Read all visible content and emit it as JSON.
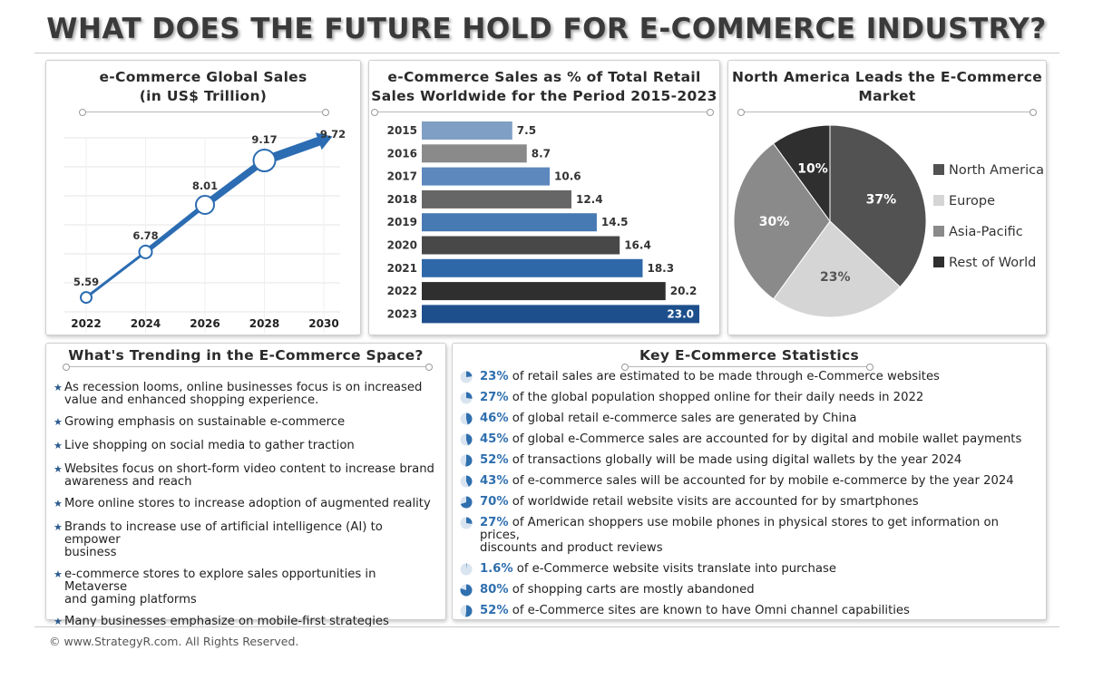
{
  "title": "WHAT DOES THE FUTURE HOLD FOR E-COMMERCE INDUSTRY?",
  "colors": {
    "blue": "#2f6fae",
    "line_blue": "#2b6cb2",
    "dark": "#3d3d3d"
  },
  "chart_data": [
    {
      "type": "line",
      "title_lines": [
        "e-Commerce Global Sales",
        "(in US$ Trillion)"
      ],
      "x": [
        "2022",
        "2024",
        "2026",
        "2028",
        "2030"
      ],
      "values": [
        5.59,
        6.78,
        8.01,
        9.17,
        9.72
      ],
      "grid": true
    },
    {
      "type": "bar",
      "orientation": "horizontal",
      "title_lines": [
        "e-Commerce Sales as % of Total Retail",
        "Sales Worldwide for the Period 2015-2023"
      ],
      "categories": [
        "2015",
        "2016",
        "2017",
        "2018",
        "2019",
        "2020",
        "2021",
        "2022",
        "2023"
      ],
      "values": [
        7.5,
        8.7,
        10.6,
        12.4,
        14.5,
        16.4,
        18.3,
        20.2,
        23.0
      ],
      "labels": [
        "7.5",
        "8.7",
        "10.6",
        "12.4",
        "14.5",
        "16.4",
        "18.3",
        "20.2",
        "23.0"
      ],
      "bar_colors": [
        "#7f9fc4",
        "#8a8a8a",
        "#5c88be",
        "#666666",
        "#4779b3",
        "#484848",
        "#2e68a8",
        "#2f2f2f",
        "#1d4f8c"
      ]
    },
    {
      "type": "pie",
      "title_lines": [
        "North America Leads the E-Commerce",
        "Market"
      ],
      "slices": [
        {
          "name": "North America",
          "value": 37,
          "label": "37%",
          "color": "#525252"
        },
        {
          "name": "Europe",
          "value": 23,
          "label": "23%",
          "color": "#d5d5d5"
        },
        {
          "name": "Asia-Pacific",
          "value": 30,
          "label": "30%",
          "color": "#8a8a8a"
        },
        {
          "name": "Rest of World",
          "value": 10,
          "label": "10%",
          "color": "#2f2f2f"
        }
      ],
      "legend_position": "right"
    }
  ],
  "trending": {
    "title": "What's Trending in the E-Commerce Space?",
    "items": [
      [
        "As recession looms, online businesses focus is on increased",
        "value and enhanced shopping experience."
      ],
      [
        "Growing emphasis on sustainable e-commerce"
      ],
      [
        "Live shopping on social media to gather traction"
      ],
      [
        "Websites focus on short-form video content to increase brand",
        "awareness and reach"
      ],
      [
        "More online stores to increase adoption of augmented reality"
      ],
      [
        "Brands to increase use of artificial intelligence (AI) to empower",
        "business"
      ],
      [
        "e-commerce stores to explore sales opportunities in Metaverse",
        "and gaming platforms"
      ],
      [
        "Many businesses emphasize on mobile-first strategies"
      ]
    ]
  },
  "stats": {
    "title": "Key E-Commerce Statistics",
    "items": [
      {
        "pct": "23%",
        "fraction": 0.23,
        "lines": [
          "of retail sales are estimated to be made through e-Commerce websites"
        ]
      },
      {
        "pct": "27%",
        "fraction": 0.27,
        "lines": [
          "of the global population shopped online for their daily needs in 2022"
        ]
      },
      {
        "pct": "46%",
        "fraction": 0.46,
        "lines": [
          "of global retail e-commerce sales are generated by China"
        ]
      },
      {
        "pct": "45%",
        "fraction": 0.45,
        "lines": [
          "of global e-Commerce sales are accounted for by digital and mobile wallet payments"
        ]
      },
      {
        "pct": "52%",
        "fraction": 0.52,
        "lines": [
          "of transactions globally will be made using digital wallets by the year 2024"
        ]
      },
      {
        "pct": "43%",
        "fraction": 0.43,
        "lines": [
          "of e-commerce sales will be accounted for by mobile e-commerce by the year 2024"
        ]
      },
      {
        "pct": "70%",
        "fraction": 0.7,
        "lines": [
          "of worldwide retail website visits are accounted for by smartphones"
        ]
      },
      {
        "pct": "27%",
        "fraction": 0.27,
        "lines": [
          "of American shoppers use mobile phones in physical stores to get information on prices,",
          "discounts and product reviews"
        ]
      },
      {
        "pct": "1.6%",
        "fraction": 0.016,
        "lines": [
          "of e-Commerce website visits translate into purchase"
        ]
      },
      {
        "pct": "80%",
        "fraction": 0.8,
        "lines": [
          "of shopping carts are mostly abandoned"
        ]
      },
      {
        "pct": "52%",
        "fraction": 0.52,
        "lines": [
          "of e-Commerce sites are known to have Omni channel capabilities"
        ]
      }
    ]
  },
  "footer": {
    "copyright": "© www.StrategyR.com. All Rights Reserved."
  }
}
